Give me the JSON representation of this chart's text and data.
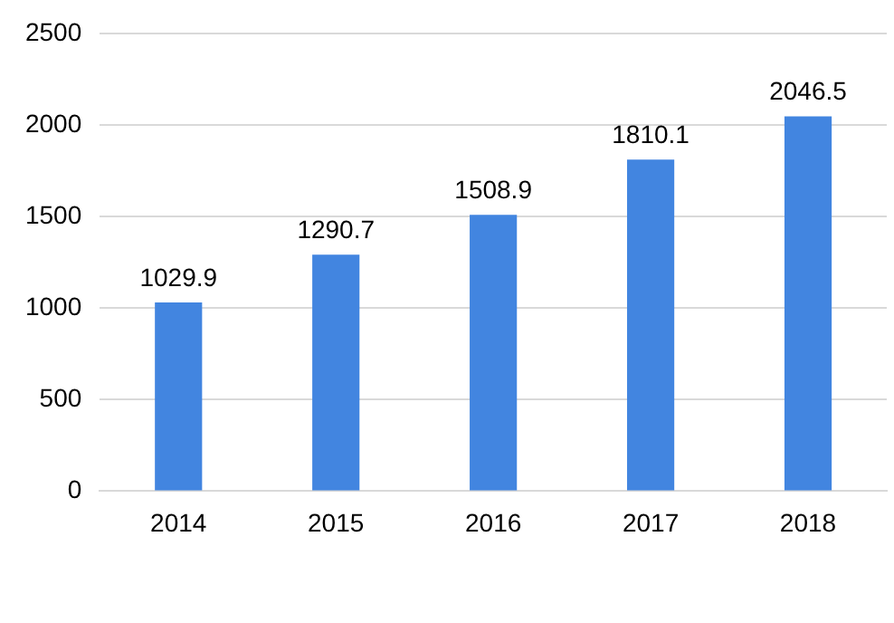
{
  "chart_data": {
    "type": "bar",
    "categories": [
      "2014",
      "2015",
      "2016",
      "2017",
      "2018"
    ],
    "values": [
      1029.9,
      1290.7,
      1508.9,
      1810.1,
      2046.5
    ],
    "color": "#4285e0",
    "ylim": [
      0,
      2500
    ],
    "yticks": [
      0,
      500,
      1000,
      1500,
      2000,
      2500
    ],
    "grid": "y",
    "data_labels": true
  }
}
